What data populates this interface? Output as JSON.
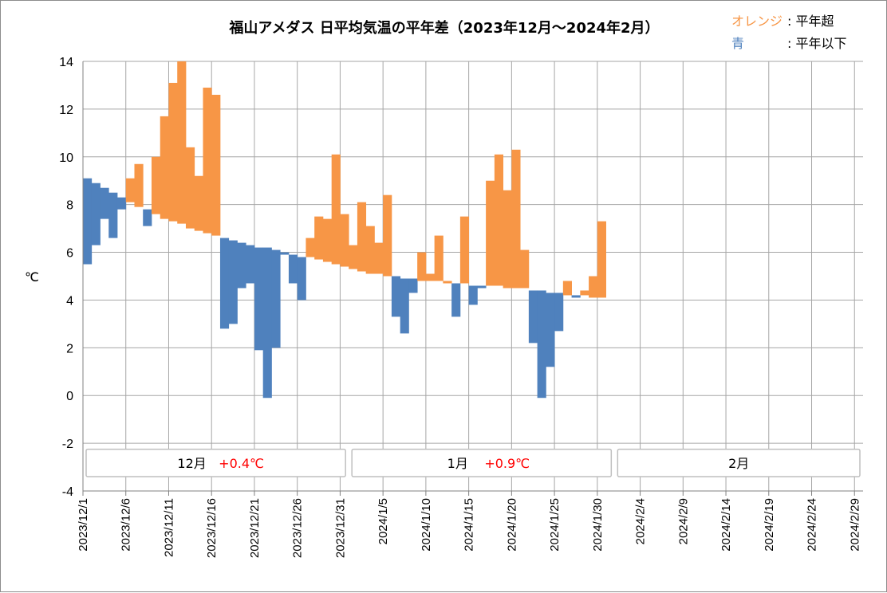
{
  "chart_data": {
    "type": "bar",
    "subtype": "floating-range (daily mean temperature vs normal)",
    "title": "福山アメダス 日平均気温の平年差（2023年12月～2024年2月）",
    "ylabel": "℃",
    "ylim": [
      -4,
      14
    ],
    "yticks": [
      -4,
      -2,
      0,
      2,
      4,
      6,
      8,
      10,
      12,
      14
    ],
    "grid": true,
    "x_day_count": 91,
    "xtick_labels": [
      "2023/12/1",
      "2023/12/6",
      "2023/12/11",
      "2023/12/16",
      "2023/12/21",
      "2023/12/26",
      "2023/12/31",
      "2024/1/5",
      "2024/1/10",
      "2024/1/15",
      "2024/1/20",
      "2024/1/25",
      "2024/1/30",
      "2024/2/4",
      "2024/2/9",
      "2024/2/14",
      "2024/2/19",
      "2024/2/24",
      "2024/2/29"
    ],
    "xtick_day_index": [
      0,
      5,
      10,
      15,
      20,
      25,
      30,
      35,
      40,
      45,
      50,
      55,
      60,
      65,
      70,
      75,
      80,
      85,
      90
    ],
    "legend": {
      "above": {
        "label": "オレンジ",
        "desc": ": 平年超",
        "color": "#f79646"
      },
      "below": {
        "label": "青",
        "desc": ": 平年以下",
        "color": "#4f81bd"
      }
    },
    "colors": {
      "above": "#f79646",
      "below": "#4f81bd"
    },
    "months": [
      {
        "label": "12月",
        "diff": "+0.4℃",
        "start_day": 0,
        "end_day": 30
      },
      {
        "label": "1月",
        "diff": "+0.9℃",
        "start_day": 31,
        "end_day": 61
      },
      {
        "label": "2月",
        "diff": "",
        "start_day": 62,
        "end_day": 90
      }
    ],
    "series": [
      {
        "name": "normal",
        "values": [
          9.1,
          8.9,
          8.7,
          8.5,
          8.3,
          8.1,
          7.9,
          7.8,
          7.6,
          7.4,
          7.3,
          7.2,
          7.0,
          6.9,
          6.8,
          6.7,
          6.6,
          6.5,
          6.4,
          6.3,
          6.2,
          6.2,
          6.1,
          6.0,
          5.9,
          5.8,
          5.8,
          5.7,
          5.6,
          5.5,
          5.4,
          5.3,
          5.2,
          5.1,
          5.1,
          5.0,
          5.0,
          4.9,
          4.9,
          4.8,
          4.8,
          4.8,
          4.7,
          4.7,
          4.7,
          4.6,
          4.6,
          4.6,
          4.6,
          4.5,
          4.5,
          4.5,
          4.4,
          4.4,
          4.3,
          4.3,
          4.2,
          4.2,
          4.2,
          4.1,
          4.1,
          4.1
        ]
      },
      {
        "name": "actual",
        "values": [
          5.5,
          6.3,
          7.4,
          6.6,
          7.8,
          9.1,
          9.7,
          7.1,
          10.0,
          11.7,
          13.1,
          14.0,
          10.4,
          9.2,
          12.9,
          12.6,
          2.8,
          3.0,
          4.5,
          4.7,
          1.9,
          -0.1,
          2.0,
          5.9,
          4.7,
          4.0,
          6.6,
          7.5,
          7.4,
          10.1,
          7.6,
          6.3,
          8.1,
          7.1,
          6.4,
          8.4,
          3.3,
          2.6,
          4.3,
          6.0,
          5.1,
          6.7,
          4.8,
          3.3,
          7.5,
          3.8,
          4.5,
          9.0,
          10.1,
          8.6,
          10.3,
          6.1,
          2.2,
          -0.1,
          1.2,
          2.7,
          4.8,
          4.1,
          4.4,
          5.0,
          7.3,
          null
        ]
      }
    ]
  }
}
